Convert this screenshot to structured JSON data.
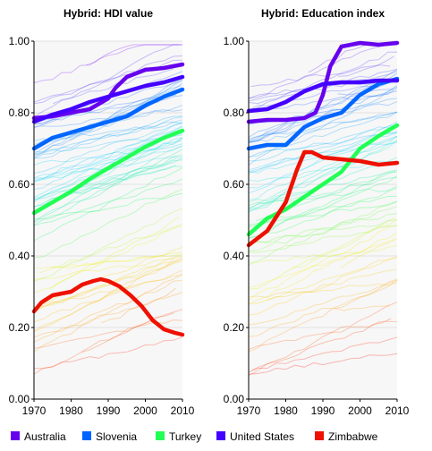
{
  "chart_data": [
    {
      "type": "line",
      "title": "Hybrid: HDI value",
      "xlabel": "",
      "ylabel": "",
      "xlim": [
        1970,
        2010
      ],
      "ylim": [
        0,
        1
      ],
      "x_ticks": [
        1970,
        1980,
        1990,
        2000,
        2010
      ],
      "y_ticks": [
        "0.00",
        "0.20",
        "0.40",
        "0.60",
        "0.80",
        "1.00"
      ],
      "grid": "horizontal",
      "series": [
        {
          "name": "Australia",
          "color": "#6600ee",
          "x": [
            1970,
            1975,
            1980,
            1985,
            1990,
            1992,
            1995,
            2000,
            2005,
            2010
          ],
          "y": [
            0.785,
            0.79,
            0.8,
            0.81,
            0.84,
            0.87,
            0.9,
            0.92,
            0.925,
            0.935
          ]
        },
        {
          "name": "Slovenia",
          "color": "#0066ff",
          "x": [
            1970,
            1975,
            1980,
            1985,
            1990,
            1995,
            2000,
            2005,
            2010
          ],
          "y": [
            0.7,
            0.73,
            0.745,
            0.76,
            0.775,
            0.79,
            0.82,
            0.845,
            0.865
          ]
        },
        {
          "name": "Turkey",
          "color": "#22ff55",
          "x": [
            1970,
            1975,
            1980,
            1985,
            1990,
            1995,
            2000,
            2005,
            2010
          ],
          "y": [
            0.52,
            0.55,
            0.58,
            0.615,
            0.645,
            0.675,
            0.705,
            0.73,
            0.75
          ]
        },
        {
          "name": "United States",
          "color": "#4400ff",
          "x": [
            1970,
            1975,
            1980,
            1985,
            1990,
            1995,
            2000,
            2005,
            2010
          ],
          "y": [
            0.775,
            0.795,
            0.81,
            0.83,
            0.845,
            0.86,
            0.875,
            0.885,
            0.9
          ]
        },
        {
          "name": "Zimbabwe",
          "color": "#ee1100",
          "x": [
            1970,
            1972,
            1975,
            1980,
            1983,
            1986,
            1988,
            1990,
            1993,
            1996,
            1999,
            2002,
            2005,
            2008,
            2010
          ],
          "y": [
            0.245,
            0.27,
            0.29,
            0.3,
            0.32,
            0.33,
            0.335,
            0.33,
            0.315,
            0.29,
            0.26,
            0.22,
            0.195,
            0.185,
            0.18
          ]
        }
      ]
    },
    {
      "type": "line",
      "title": "Hybrid: Education index",
      "xlabel": "",
      "ylabel": "",
      "xlim": [
        1970,
        2010
      ],
      "ylim": [
        0,
        1
      ],
      "x_ticks": [
        1970,
        1980,
        1990,
        2000,
        2010
      ],
      "y_ticks": [
        "0.00",
        "0.20",
        "0.40",
        "0.60",
        "0.80",
        "1.00"
      ],
      "grid": "horizontal",
      "series": [
        {
          "name": "Australia",
          "color": "#6600ee",
          "x": [
            1970,
            1975,
            1980,
            1985,
            1988,
            1990,
            1992,
            1995,
            2000,
            2005,
            2010
          ],
          "y": [
            0.775,
            0.78,
            0.78,
            0.785,
            0.8,
            0.85,
            0.93,
            0.985,
            0.995,
            0.99,
            0.995
          ]
        },
        {
          "name": "Slovenia",
          "color": "#0066ff",
          "x": [
            1970,
            1975,
            1980,
            1985,
            1990,
            1995,
            2000,
            2005,
            2010
          ],
          "y": [
            0.7,
            0.71,
            0.71,
            0.76,
            0.785,
            0.8,
            0.85,
            0.88,
            0.895
          ]
        },
        {
          "name": "Turkey",
          "color": "#22ff55",
          "x": [
            1970,
            1975,
            1980,
            1985,
            1990,
            1995,
            2000,
            2005,
            2010
          ],
          "y": [
            0.46,
            0.505,
            0.53,
            0.565,
            0.6,
            0.635,
            0.7,
            0.735,
            0.765
          ]
        },
        {
          "name": "United States",
          "color": "#4400ff",
          "x": [
            1970,
            1975,
            1980,
            1985,
            1990,
            1995,
            2000,
            2005,
            2010
          ],
          "y": [
            0.805,
            0.81,
            0.83,
            0.86,
            0.88,
            0.885,
            0.885,
            0.89,
            0.89
          ]
        },
        {
          "name": "Zimbabwe",
          "color": "#ee1100",
          "x": [
            1970,
            1975,
            1980,
            1983,
            1985,
            1987,
            1990,
            1995,
            2000,
            2005,
            2010
          ],
          "y": [
            0.43,
            0.47,
            0.55,
            0.64,
            0.69,
            0.69,
            0.675,
            0.67,
            0.665,
            0.655,
            0.66
          ]
        }
      ]
    }
  ],
  "legend": [
    {
      "label": "Australia",
      "color": "#6600ee"
    },
    {
      "label": "Slovenia",
      "color": "#0066ff"
    },
    {
      "label": "Turkey",
      "color": "#22ff55"
    },
    {
      "label": "United States",
      "color": "#4400ff"
    },
    {
      "label": "Zimbabwe",
      "color": "#ee1100"
    }
  ],
  "legend_placement": "bottom"
}
